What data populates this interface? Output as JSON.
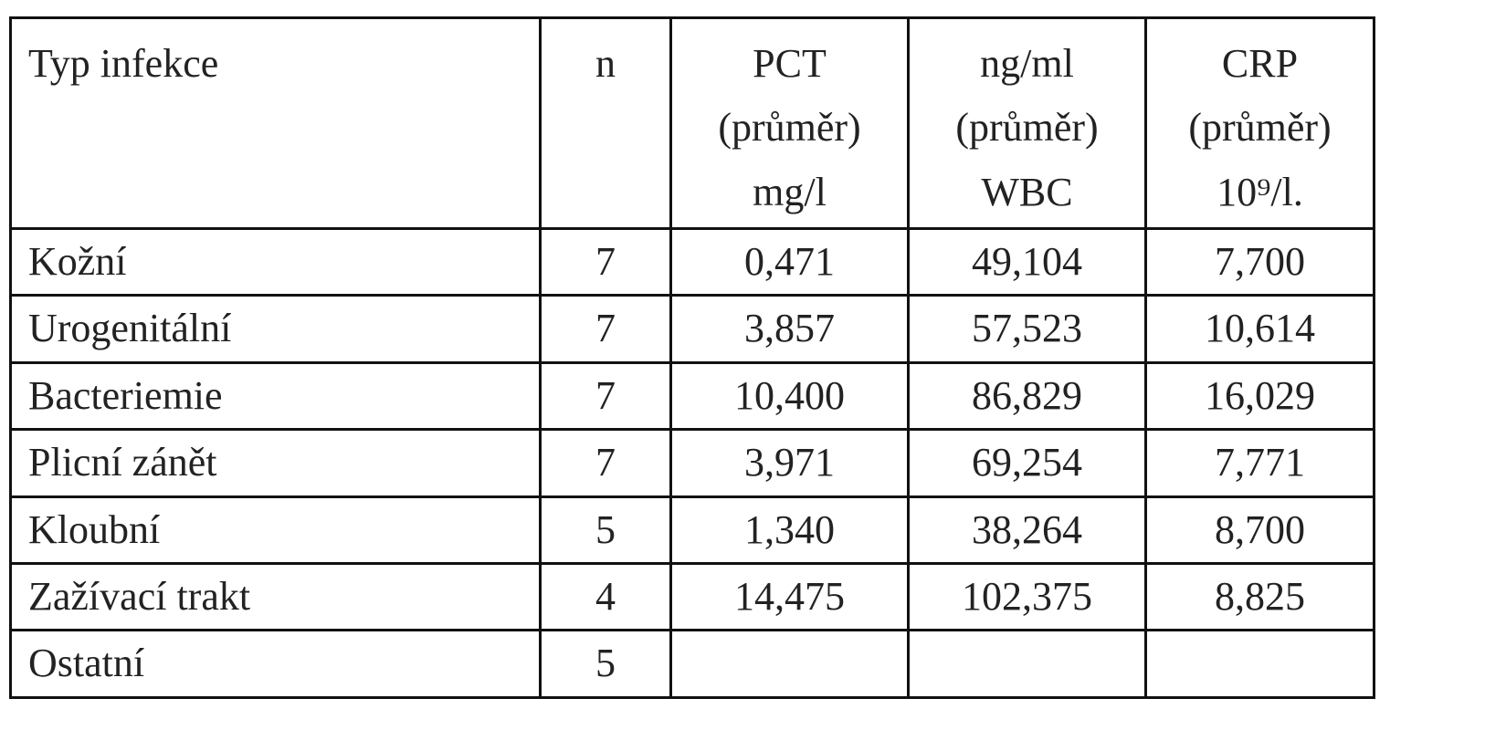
{
  "table": {
    "header": [
      [
        "Typ infekce"
      ],
      [
        "n"
      ],
      [
        "PCT",
        "(průměr)",
        "mg/l"
      ],
      [
        "ng/ml",
        "(průměr)",
        "WBC"
      ],
      [
        "CRP",
        "(průměr)",
        "10⁹/l."
      ]
    ],
    "rows": [
      [
        "Kožní",
        "7",
        "0,471",
        "49,104",
        "7,700"
      ],
      [
        "Urogenitální",
        "7",
        "3,857",
        "57,523",
        "10,614"
      ],
      [
        "Bacteriemie",
        "7",
        "10,400",
        "86,829",
        "16,029"
      ],
      [
        "Plicní zánět",
        "7",
        "3,971",
        "69,254",
        "7,771"
      ],
      [
        "Kloubní",
        "5",
        "1,340",
        "38,264",
        "8,700"
      ],
      [
        "Zažívací trakt",
        "4",
        "14,475",
        "102,375",
        "8,825"
      ],
      [
        "Ostatní",
        "5"
      ]
    ]
  }
}
